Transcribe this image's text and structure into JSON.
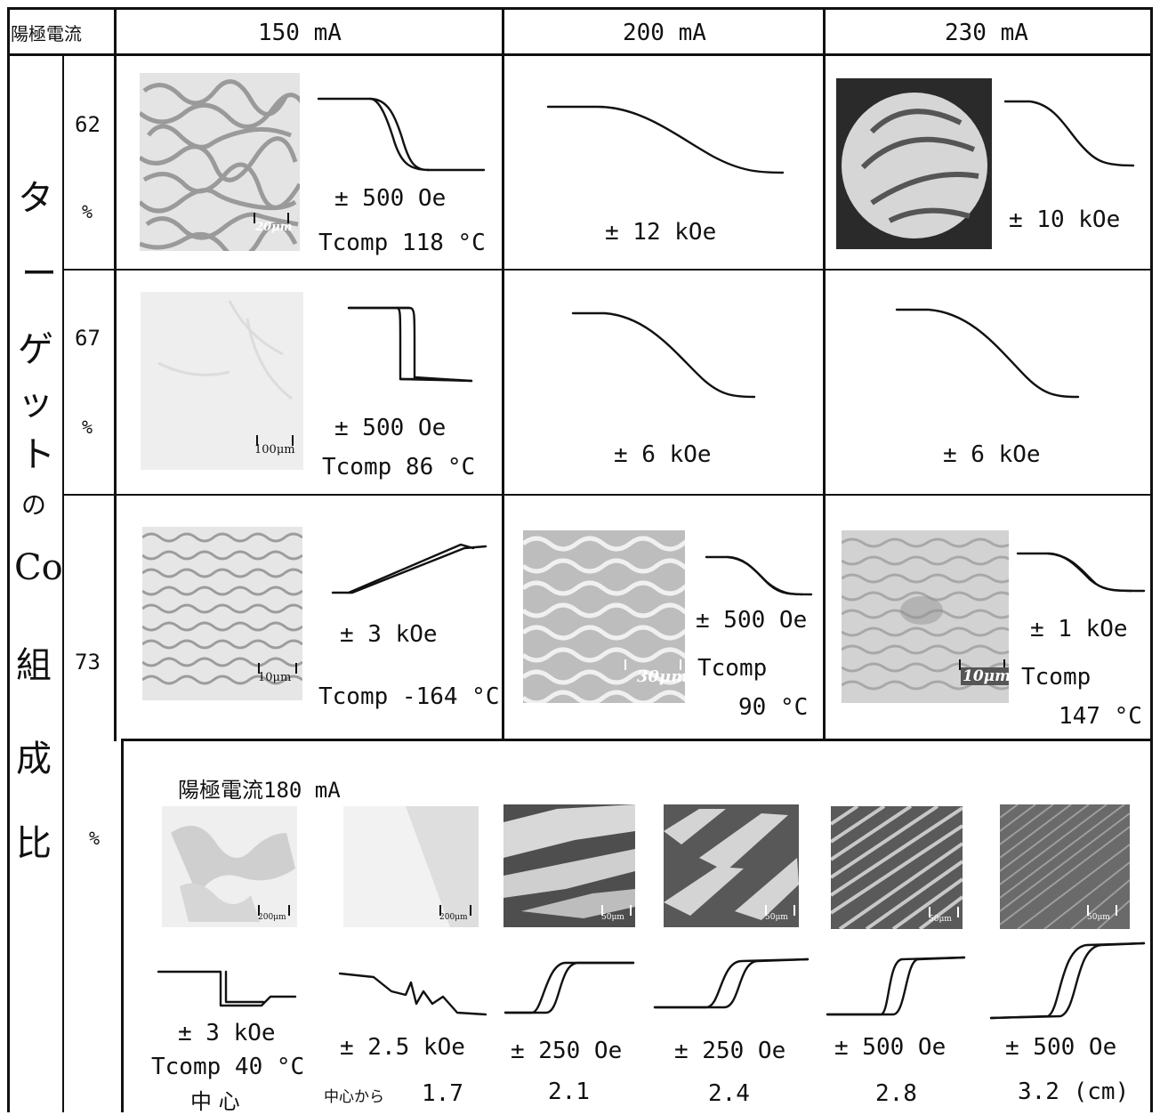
{
  "header": {
    "corner_label": "陽極電流",
    "columns": [
      "150 mA",
      "200 mA",
      "230 mA"
    ]
  },
  "row_axis": {
    "label_chars": [
      "タ",
      "ー",
      "ゲ",
      "ッ",
      "ト",
      "の",
      "Co",
      "組",
      "成",
      "比"
    ]
  },
  "rows": [
    {
      "composition": "62",
      "unit": "%",
      "cells": [
        {
          "scale": "20μm",
          "field": "± 500 Oe",
          "tcomp": "Tcomp 118 °C"
        },
        {
          "field": "± 12 kOe"
        },
        {
          "field": "± 10 kOe"
        }
      ]
    },
    {
      "composition": "67",
      "unit": "%",
      "cells": [
        {
          "scale": "100μm",
          "field": "± 500 Oe",
          "tcomp": "Tcomp  86 °C"
        },
        {
          "field": "± 6 kOe"
        },
        {
          "field": "± 6 kOe"
        }
      ]
    },
    {
      "composition": "73",
      "unit": "%",
      "cells": [
        {
          "scale": "10μm",
          "field": "± 3 kOe",
          "tcomp": "Tcomp -164 °C"
        },
        {
          "scale": "30μm",
          "field": "± 500 Oe",
          "tcomp_label": "Tcomp",
          "tcomp_value": "90 °C"
        },
        {
          "scale": "10μm",
          "field": "± 1 kOe",
          "tcomp_label": "Tcomp",
          "tcomp_value": "147 °C"
        }
      ]
    }
  ],
  "bottom": {
    "unit": "%",
    "title": "陽極電流180 mA",
    "samples": [
      {
        "scale": "200μm",
        "field": "± 3 kOe",
        "extra": "Tcomp 40 °C",
        "position": "中 心"
      },
      {
        "scale": "200μm",
        "field": "± 2.5 kOe",
        "position_prefix": "中心から",
        "position": "1.7"
      },
      {
        "scale": "50μm",
        "field": "± 250 Oe",
        "position": "2.1"
      },
      {
        "scale": "50μm",
        "field": "± 250 Oe",
        "position": "2.4"
      },
      {
        "scale": "50μm",
        "field": "± 500 Oe",
        "position": "2.8"
      },
      {
        "scale": "50μm",
        "field": "± 500 Oe",
        "position": "3.2 (cm)"
      }
    ]
  }
}
